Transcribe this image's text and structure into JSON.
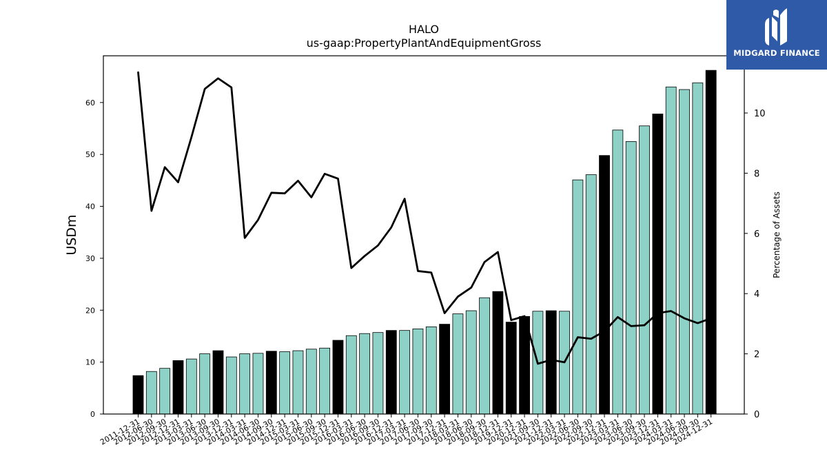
{
  "chart_data": {
    "type": "bar",
    "title": "HALO",
    "subtitle": "us-gaap:PropertyPlantAndEquipmentGross",
    "ylabel": "USDm",
    "y2label": "Percentage of Assets",
    "ylim": [
      0,
      69
    ],
    "y2lim": [
      0,
      11.9
    ],
    "yticks": [
      0,
      10,
      20,
      30,
      40,
      50,
      60
    ],
    "y2ticks": [
      0,
      2,
      4,
      6,
      8,
      10
    ],
    "grid": false,
    "categories": [
      "2011-12-31",
      "2012-06-30",
      "2012-09-30",
      "2012-12-31",
      "2013-03-31",
      "2013-06-30",
      "2013-09-30",
      "2013-12-31",
      "2014-03-31",
      "2014-06-30",
      "2014-09-30",
      "2014-12-31",
      "2015-03-31",
      "2015-06-30",
      "2015-09-30",
      "2015-12-31",
      "2016-03-31",
      "2016-06-30",
      "2016-09-30",
      "2016-12-31",
      "2017-03-31",
      "2017-06-30",
      "2017-09-30",
      "2017-12-31",
      "2018-03-31",
      "2018-06-30",
      "2018-09-30",
      "2018-12-31",
      "2019-12-31",
      "2020-12-31",
      "2021-09-30",
      "2021-12-31",
      "2022-03-31",
      "2022-06-30",
      "2022-09-30",
      "2022-12-31",
      "2023-03-31",
      "2023-06-30",
      "2023-09-30",
      "2023-12-31",
      "2024-03-31",
      "2024-06-30",
      "2024-09-30",
      "2024-12-31"
    ],
    "series": [
      {
        "kind": "bar",
        "values": [
          7.4,
          8.2,
          8.8,
          10.3,
          10.6,
          11.6,
          12.2,
          11.0,
          11.6,
          11.7,
          12.1,
          12.0,
          12.2,
          12.5,
          12.7,
          14.2,
          15.1,
          15.5,
          15.7,
          16.1,
          16.1,
          16.4,
          16.8,
          17.3,
          19.3,
          19.9,
          22.4,
          23.6,
          17.7,
          18.8,
          19.8,
          19.9,
          19.8,
          45.1,
          46.1,
          49.8,
          54.7,
          52.5,
          55.5,
          57.8,
          63.0,
          62.5,
          63.8,
          66.2
        ],
        "highlight": [
          true,
          false,
          false,
          true,
          false,
          false,
          true,
          false,
          false,
          false,
          true,
          false,
          false,
          false,
          false,
          true,
          false,
          false,
          false,
          true,
          false,
          false,
          false,
          true,
          false,
          false,
          false,
          true,
          true,
          true,
          false,
          true,
          false,
          false,
          false,
          true,
          false,
          false,
          false,
          true,
          false,
          false,
          false,
          true
        ],
        "color": "#8ed1c6",
        "highlight_color": "#000000"
      },
      {
        "kind": "line",
        "axis": "right",
        "values": [
          11.35,
          6.75,
          8.2,
          7.7,
          9.2,
          10.8,
          11.15,
          10.85,
          5.85,
          6.45,
          7.35,
          7.33,
          7.75,
          7.2,
          7.98,
          7.82,
          4.85,
          5.25,
          5.6,
          6.2,
          7.15,
          4.75,
          4.7,
          3.35,
          3.9,
          4.2,
          5.05,
          5.38,
          3.12,
          3.25,
          1.67,
          1.8,
          1.72,
          2.55,
          2.5,
          2.75,
          3.22,
          2.92,
          2.95,
          3.35,
          3.42,
          3.18,
          3.02,
          3.18
        ],
        "color": "#000000"
      }
    ]
  },
  "logo": {
    "text": "MIDGARD FINANCE"
  }
}
